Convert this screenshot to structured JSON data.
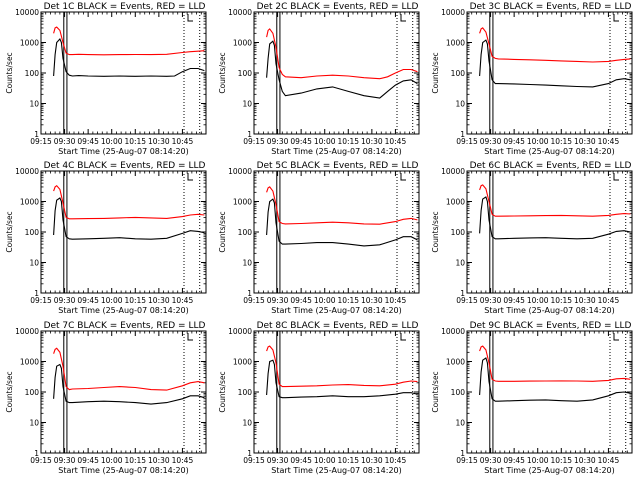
{
  "chart_data": [
    {
      "type": "line",
      "title": "Det 1C BLACK = Events, RED = LLD",
      "xlabel": "Start Time (25-Aug-07 08:14:20)",
      "ylabel": "Counts/sec",
      "x_ticks": [
        "09:15",
        "09:30",
        "09:45",
        "10:00",
        "10:15",
        "10:30",
        "10:45"
      ],
      "y_ticks": [
        "1",
        "10",
        "100",
        "1000",
        "10000"
      ],
      "yscale": "log",
      "ylim": [
        1,
        10000
      ],
      "xlim_minutes": [
        0,
        105
      ],
      "series": [
        {
          "color": "#ff0000",
          "x": [
            8,
            9,
            10,
            12,
            14,
            16,
            18,
            20,
            24,
            30,
            40,
            50,
            60,
            70,
            80,
            90,
            95,
            100,
            104
          ],
          "values": [
            2000,
            3000,
            3200,
            2500,
            1000,
            450,
            400,
            400,
            410,
            400,
            395,
            400,
            405,
            400,
            410,
            470,
            500,
            520,
            540
          ]
        },
        {
          "color": "#000000",
          "x": [
            8,
            9,
            10,
            12,
            13,
            14,
            16,
            18,
            20,
            24,
            30,
            40,
            50,
            60,
            70,
            80,
            85,
            90,
            95,
            100,
            104
          ],
          "values": [
            80,
            400,
            1000,
            1300,
            1000,
            300,
            110,
            85,
            80,
            82,
            80,
            78,
            80,
            78,
            80,
            78,
            80,
            110,
            140,
            140,
            120
          ]
        }
      ]
    },
    {
      "type": "line",
      "title": "Det 2C BLACK = Events, RED = LLD",
      "xlabel": "Start Time (25-Aug-07 08:14:20)",
      "ylabel": "Counts/sec",
      "x_ticks": [
        "09:15",
        "09:30",
        "09:45",
        "10:00",
        "10:15",
        "10:30",
        "10:45"
      ],
      "y_ticks": [
        "1",
        "10",
        "100",
        "1000",
        "10000"
      ],
      "yscale": "log",
      "ylim": [
        1,
        10000
      ],
      "xlim_minutes": [
        0,
        105
      ],
      "series": [
        {
          "color": "#ff0000",
          "x": [
            8,
            9,
            10,
            12,
            14,
            16,
            18,
            20,
            30,
            40,
            50,
            60,
            70,
            80,
            85,
            90,
            95,
            100,
            104
          ],
          "values": [
            1500,
            2500,
            2800,
            2000,
            700,
            150,
            90,
            75,
            70,
            80,
            85,
            80,
            70,
            65,
            75,
            100,
            130,
            130,
            110
          ]
        },
        {
          "color": "#000000",
          "x": [
            8,
            9,
            10,
            12,
            13,
            14,
            16,
            18,
            20,
            30,
            40,
            50,
            60,
            70,
            80,
            85,
            90,
            95,
            100,
            104
          ],
          "values": [
            70,
            300,
            900,
            1100,
            800,
            200,
            60,
            25,
            18,
            22,
            30,
            35,
            25,
            18,
            15,
            25,
            40,
            55,
            60,
            45
          ]
        }
      ]
    },
    {
      "type": "line",
      "title": "Det 3C BLACK = Events, RED = LLD",
      "xlabel": "Start Time (25-Aug-07 08:14:20)",
      "ylabel": "Counts/sec",
      "x_ticks": [
        "09:15",
        "09:30",
        "09:45",
        "10:00",
        "10:15",
        "10:30",
        "10:45"
      ],
      "y_ticks": [
        "1",
        "10",
        "100",
        "1000",
        "10000"
      ],
      "yscale": "log",
      "ylim": [
        1,
        10000
      ],
      "xlim_minutes": [
        0,
        105
      ],
      "series": [
        {
          "color": "#ff0000",
          "x": [
            8,
            9,
            10,
            12,
            14,
            16,
            18,
            20,
            30,
            40,
            50,
            60,
            70,
            80,
            90,
            95,
            100,
            104
          ],
          "values": [
            2000,
            2800,
            3000,
            2200,
            900,
            350,
            300,
            290,
            280,
            270,
            260,
            250,
            240,
            230,
            240,
            260,
            280,
            290
          ]
        },
        {
          "color": "#000000",
          "x": [
            8,
            9,
            10,
            12,
            13,
            14,
            16,
            18,
            20,
            30,
            40,
            50,
            60,
            70,
            80,
            90,
            95,
            100,
            104
          ],
          "values": [
            80,
            400,
            1000,
            1200,
            900,
            250,
            60,
            45,
            45,
            44,
            42,
            40,
            38,
            36,
            35,
            45,
            60,
            65,
            60
          ]
        }
      ]
    },
    {
      "type": "line",
      "title": "Det 4C BLACK = Events, RED = LLD",
      "xlabel": "Start Time (25-Aug-07 08:14:20)",
      "ylabel": "Counts/sec",
      "x_ticks": [
        "09:15",
        "09:30",
        "09:45",
        "10:00",
        "10:15",
        "10:30",
        "10:45"
      ],
      "y_ticks": [
        "1",
        "10",
        "100",
        "1000",
        "10000"
      ],
      "yscale": "log",
      "ylim": [
        1,
        10000
      ],
      "xlim_minutes": [
        0,
        105
      ],
      "series": [
        {
          "color": "#ff0000",
          "x": [
            8,
            9,
            10,
            12,
            14,
            16,
            18,
            20,
            30,
            40,
            50,
            60,
            70,
            80,
            90,
            95,
            100,
            104
          ],
          "values": [
            2200,
            3000,
            3300,
            2500,
            900,
            300,
            270,
            270,
            275,
            280,
            290,
            300,
            290,
            280,
            320,
            360,
            380,
            360
          ]
        },
        {
          "color": "#000000",
          "x": [
            8,
            9,
            10,
            12,
            13,
            14,
            16,
            18,
            20,
            30,
            40,
            50,
            60,
            70,
            80,
            90,
            95,
            100,
            104
          ],
          "values": [
            80,
            500,
            1100,
            1300,
            1000,
            250,
            70,
            60,
            58,
            60,
            62,
            65,
            60,
            58,
            62,
            90,
            110,
            105,
            95
          ]
        }
      ]
    },
    {
      "type": "line",
      "title": "Det 5C BLACK = Events, RED = LLD",
      "xlabel": "Start Time (25-Aug-07 08:14:20)",
      "ylabel": "Counts/sec",
      "x_ticks": [
        "09:15",
        "09:30",
        "09:45",
        "10:00",
        "10:15",
        "10:30",
        "10:45"
      ],
      "y_ticks": [
        "1",
        "10",
        "100",
        "1000",
        "10000"
      ],
      "yscale": "log",
      "ylim": [
        1,
        10000
      ],
      "xlim_minutes": [
        0,
        105
      ],
      "series": [
        {
          "color": "#ff0000",
          "x": [
            8,
            9,
            10,
            12,
            14,
            16,
            18,
            20,
            30,
            40,
            50,
            60,
            70,
            80,
            90,
            95,
            100,
            104
          ],
          "values": [
            2000,
            2800,
            3000,
            2200,
            800,
            220,
            190,
            185,
            190,
            200,
            210,
            200,
            185,
            180,
            220,
            260,
            280,
            250
          ]
        },
        {
          "color": "#000000",
          "x": [
            8,
            9,
            10,
            12,
            13,
            14,
            16,
            18,
            20,
            30,
            40,
            50,
            60,
            70,
            80,
            90,
            95,
            100,
            104
          ],
          "values": [
            80,
            450,
            1000,
            1200,
            900,
            200,
            50,
            40,
            40,
            42,
            45,
            45,
            40,
            35,
            38,
            55,
            70,
            70,
            55
          ]
        }
      ]
    },
    {
      "type": "line",
      "title": "Det 6C BLACK = Events, RED = LLD",
      "xlabel": "Start Time (25-Aug-07 08:14:20)",
      "ylabel": "Counts/sec",
      "x_ticks": [
        "09:15",
        "09:30",
        "09:45",
        "10:00",
        "10:15",
        "10:30",
        "10:45"
      ],
      "y_ticks": [
        "1",
        "10",
        "100",
        "1000",
        "10000"
      ],
      "yscale": "log",
      "ylim": [
        1,
        10000
      ],
      "xlim_minutes": [
        0,
        105
      ],
      "series": [
        {
          "color": "#ff0000",
          "x": [
            8,
            9,
            10,
            12,
            14,
            16,
            18,
            20,
            30,
            40,
            50,
            60,
            70,
            80,
            90,
            95,
            100,
            104
          ],
          "values": [
            2400,
            3300,
            3500,
            2600,
            1000,
            380,
            330,
            330,
            335,
            340,
            345,
            350,
            340,
            330,
            350,
            380,
            400,
            390
          ]
        },
        {
          "color": "#000000",
          "x": [
            8,
            9,
            10,
            12,
            13,
            14,
            16,
            18,
            20,
            30,
            40,
            50,
            60,
            70,
            80,
            90,
            95,
            100,
            104
          ],
          "values": [
            90,
            500,
            1200,
            1400,
            1000,
            250,
            70,
            60,
            60,
            62,
            64,
            65,
            62,
            60,
            62,
            85,
            105,
            110,
            100
          ]
        }
      ]
    },
    {
      "type": "line",
      "title": "Det 7C BLACK = Events, RED = LLD",
      "xlabel": "Start Time (25-Aug-07 08:14:20)",
      "ylabel": "Counts/sec",
      "x_ticks": [
        "09:15",
        "09:30",
        "09:45",
        "10:00",
        "10:15",
        "10:30",
        "10:45"
      ],
      "y_ticks": [
        "1",
        "10",
        "100",
        "1000",
        "10000"
      ],
      "yscale": "log",
      "ylim": [
        1,
        10000
      ],
      "xlim_minutes": [
        0,
        105
      ],
      "series": [
        {
          "color": "#ff0000",
          "x": [
            8,
            9,
            10,
            12,
            14,
            16,
            18,
            20,
            30,
            40,
            50,
            60,
            70,
            80,
            90,
            95,
            100,
            104
          ],
          "values": [
            1800,
            2500,
            2700,
            2000,
            700,
            150,
            120,
            125,
            130,
            140,
            150,
            140,
            120,
            115,
            160,
            200,
            220,
            200
          ]
        },
        {
          "color": "#000000",
          "x": [
            8,
            9,
            10,
            12,
            13,
            14,
            16,
            18,
            20,
            30,
            40,
            50,
            60,
            70,
            80,
            90,
            95,
            100,
            104
          ],
          "values": [
            60,
            300,
            700,
            800,
            600,
            150,
            50,
            45,
            45,
            48,
            50,
            48,
            45,
            40,
            45,
            60,
            75,
            75,
            65
          ]
        }
      ]
    },
    {
      "type": "line",
      "title": "Det 8C BLACK = Events, RED = LLD",
      "xlabel": "Start Time (25-Aug-07 08:14:20)",
      "ylabel": "Counts/sec",
      "x_ticks": [
        "09:15",
        "09:30",
        "09:45",
        "10:00",
        "10:15",
        "10:30",
        "10:45"
      ],
      "y_ticks": [
        "1",
        "10",
        "100",
        "1000",
        "10000"
      ],
      "yscale": "log",
      "ylim": [
        1,
        10000
      ],
      "xlim_minutes": [
        0,
        105
      ],
      "series": [
        {
          "color": "#ff0000",
          "x": [
            8,
            9,
            10,
            12,
            14,
            16,
            18,
            20,
            30,
            40,
            50,
            60,
            70,
            80,
            90,
            95,
            100,
            104
          ],
          "values": [
            2200,
            3000,
            3200,
            2400,
            900,
            180,
            150,
            150,
            155,
            160,
            170,
            175,
            165,
            160,
            180,
            210,
            230,
            220
          ]
        },
        {
          "color": "#000000",
          "x": [
            8,
            9,
            10,
            12,
            13,
            14,
            16,
            18,
            20,
            30,
            40,
            50,
            60,
            70,
            80,
            90,
            95,
            100,
            104
          ],
          "values": [
            80,
            400,
            1000,
            1100,
            800,
            200,
            70,
            65,
            65,
            68,
            70,
            75,
            70,
            70,
            75,
            85,
            95,
            95,
            85
          ]
        }
      ]
    },
    {
      "type": "line",
      "title": "Det 9C BLACK = Events, RED = LLD",
      "xlabel": "Start Time (25-Aug-07 08:14:20)",
      "ylabel": "Counts/sec",
      "x_ticks": [
        "09:15",
        "09:30",
        "09:45",
        "10:00",
        "10:15",
        "10:30",
        "10:45"
      ],
      "y_ticks": [
        "1",
        "10",
        "100",
        "1000",
        "10000"
      ],
      "yscale": "log",
      "ylim": [
        1,
        10000
      ],
      "xlim_minutes": [
        0,
        105
      ],
      "series": [
        {
          "color": "#ff0000",
          "x": [
            8,
            9,
            10,
            12,
            14,
            16,
            18,
            20,
            30,
            40,
            50,
            60,
            70,
            80,
            90,
            95,
            100,
            104
          ],
          "values": [
            2200,
            3000,
            3200,
            2400,
            900,
            260,
            230,
            225,
            225,
            228,
            230,
            232,
            230,
            225,
            240,
            270,
            280,
            260
          ]
        },
        {
          "color": "#000000",
          "x": [
            8,
            9,
            10,
            12,
            13,
            14,
            16,
            18,
            20,
            30,
            40,
            50,
            60,
            70,
            80,
            90,
            95,
            100,
            104
          ],
          "values": [
            80,
            450,
            1100,
            1300,
            900,
            220,
            60,
            50,
            50,
            52,
            54,
            55,
            52,
            50,
            55,
            75,
            95,
            100,
            90
          ]
        }
      ]
    }
  ]
}
